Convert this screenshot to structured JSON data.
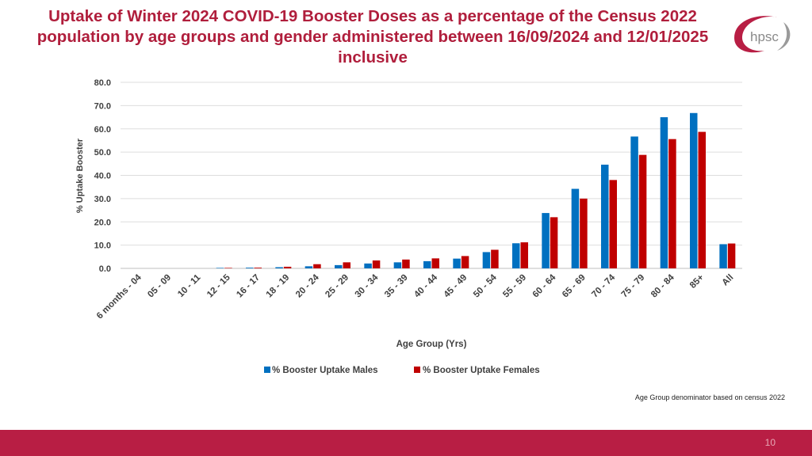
{
  "title": "Uptake of Winter 2024 COVID-19 Booster Doses as a percentage of the Census 2022 population by age groups and gender administered between 16/09/2024 and 12/01/2025 inclusive",
  "logo_text": "hpsc",
  "footnote": "Age Group denominator based on census 2022",
  "page_number": "10",
  "colors": {
    "title": "#b01e3c",
    "males": "#0070c0",
    "females": "#c00000",
    "footer_bar": "#b81e44"
  },
  "chart_data": {
    "type": "bar",
    "title": "",
    "xlabel": "Age Group (Yrs)",
    "ylabel": "% Uptake Booster",
    "ylim": [
      0,
      80
    ],
    "yticks": [
      "0.0",
      "10.0",
      "20.0",
      "30.0",
      "40.0",
      "50.0",
      "60.0",
      "70.0",
      "80.0"
    ],
    "grid": true,
    "legend_position": "bottom",
    "categories": [
      "6 months - 04",
      "05 - 09",
      "10 - 11",
      "12 - 15",
      "16 - 17",
      "18 - 19",
      "20 - 24",
      "25 - 29",
      "30 - 34",
      "35 - 39",
      "40 - 44",
      "45 - 49",
      "50 - 54",
      "55 - 59",
      "60 - 64",
      "65 - 69",
      "70 - 74",
      "75 - 79",
      "80 - 84",
      "85+",
      "All"
    ],
    "series": [
      {
        "name": "% Booster Uptake Males",
        "color": "#0070c0",
        "values": [
          0.0,
          0.0,
          0.0,
          0.1,
          0.3,
          0.5,
          0.9,
          1.4,
          2.1,
          2.6,
          3.1,
          4.2,
          7.0,
          10.8,
          23.8,
          34.2,
          44.6,
          56.7,
          65.0,
          66.8,
          10.4
        ]
      },
      {
        "name": "% Booster Uptake Females",
        "color": "#c00000",
        "values": [
          0.0,
          0.0,
          0.0,
          0.1,
          0.3,
          0.7,
          1.8,
          2.6,
          3.4,
          3.8,
          4.3,
          5.3,
          8.0,
          11.2,
          22.0,
          30.0,
          38.0,
          48.8,
          55.6,
          58.7,
          10.7
        ]
      }
    ]
  }
}
